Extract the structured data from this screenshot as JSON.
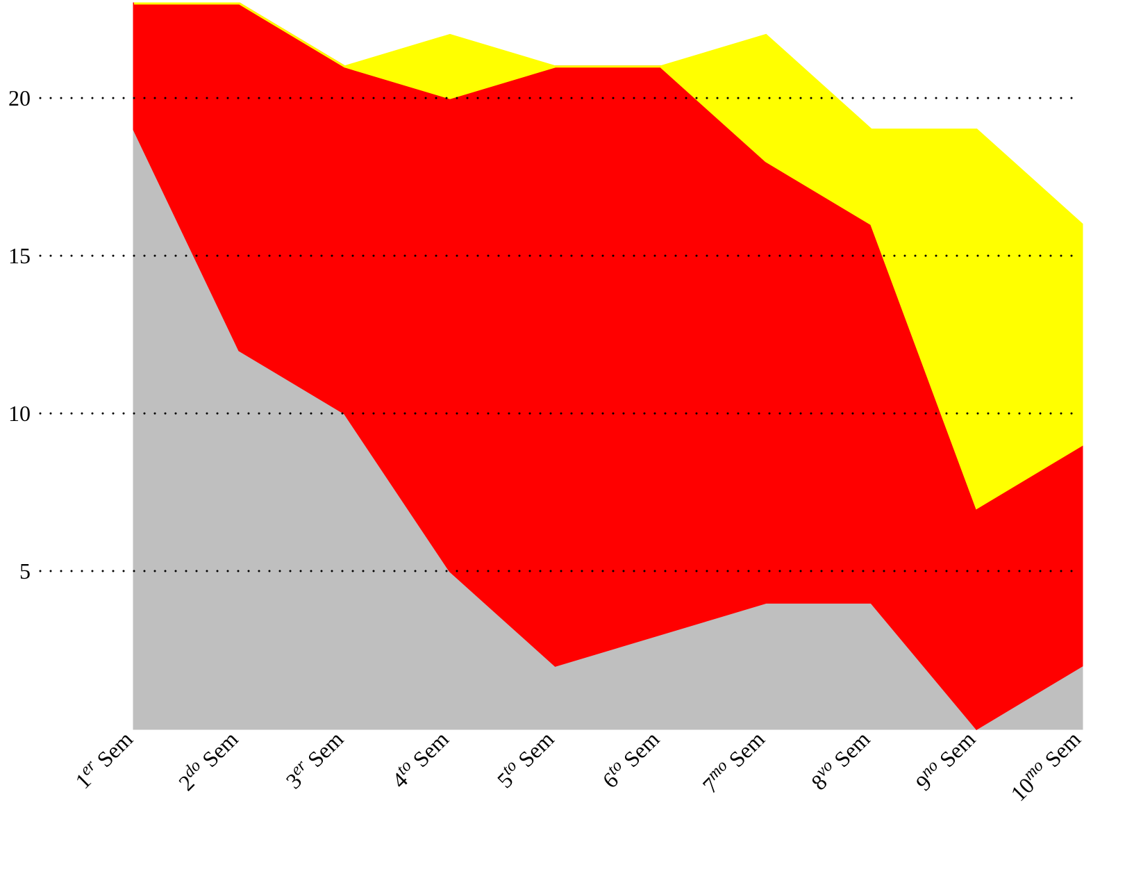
{
  "chart_data": {
    "type": "stacked-area",
    "categories": [
      [
        "1",
        "er",
        " Sem"
      ],
      [
        "2",
        "do",
        " Sem"
      ],
      [
        "3",
        "er",
        " Sem"
      ],
      [
        "4",
        "to",
        " Sem"
      ],
      [
        "5",
        "to",
        " Sem"
      ],
      [
        "6",
        "to",
        " Sem"
      ],
      [
        "7",
        "mo",
        " Sem"
      ],
      [
        "8",
        "vo",
        " Sem"
      ],
      [
        "9",
        "no",
        " Sem"
      ],
      [
        "10",
        "mo",
        " Sem"
      ]
    ],
    "series": [
      {
        "color": "#bfbfbf",
        "values": [
          19,
          12,
          10,
          5,
          2,
          3,
          4,
          4,
          0,
          2
        ]
      },
      {
        "color": "#ff0000",
        "values": [
          4,
          11,
          11,
          15,
          19,
          18,
          14,
          12,
          7,
          7
        ]
      },
      {
        "color": "#ffff00",
        "values": [
          0,
          0,
          0,
          2,
          0,
          0,
          4,
          3,
          12,
          7
        ]
      }
    ],
    "ylim": [
      0,
      23
    ],
    "yticks": [
      5,
      10,
      15,
      20
    ],
    "grid": true
  }
}
